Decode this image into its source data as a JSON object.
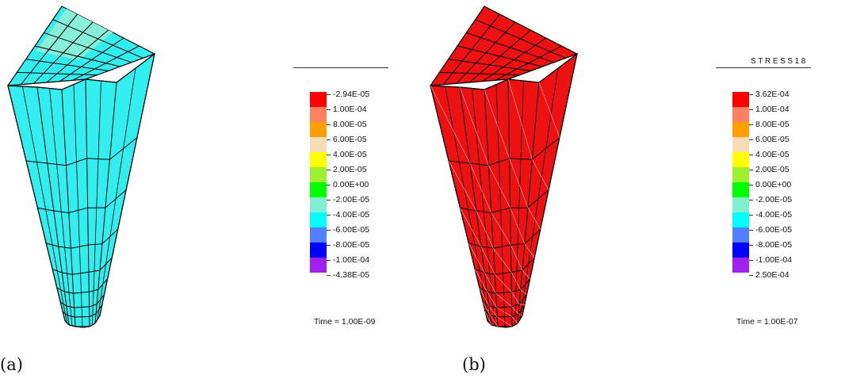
{
  "panels": [
    {
      "caption": "(a)",
      "legend_title": "",
      "legend_labels": [
        "-2.94E-05",
        "1.00E-04",
        "8.00E-05",
        "6.00E-05",
        "4.00E-05",
        "2.00E-05",
        "0.00E+00",
        "-2.00E-05",
        "-4.00E-05",
        "-6.00E-05",
        "-8.00E-05",
        "-1.00E-04",
        "-4.38E-05"
      ],
      "time": "Time = 1.00E-09",
      "model_color": "#33eeee",
      "top_color": "#88f0d8"
    },
    {
      "caption": "(b)",
      "legend_title": "STRESS18",
      "legend_labels": [
        "3.62E-04",
        "1.00E-04",
        "8.00E-05",
        "6.00E-05",
        "4.00E-05",
        "2.00E-05",
        "0.00E+00",
        "-2.00E-05",
        "-4.00E-05",
        "-6.00E-05",
        "-8.00E-05",
        "-1.00E-04",
        "2.50E-04"
      ],
      "time": "Time = 1.00E-07",
      "model_color": "#ee1111",
      "top_color": "#ee1111"
    }
  ],
  "legend_colors": [
    "#ff0000",
    "#ff8060",
    "#ffa000",
    "#f5deb3",
    "#ffff00",
    "#a0f030",
    "#00ff00",
    "#80f0d0",
    "#00ffff",
    "#5080ff",
    "#0000ff",
    "#a020f0"
  ]
}
